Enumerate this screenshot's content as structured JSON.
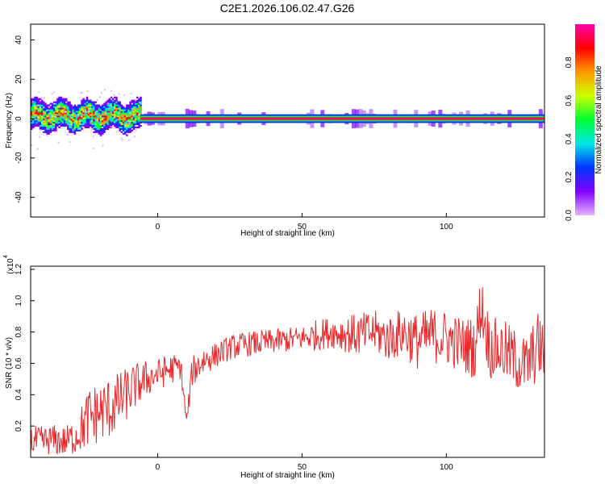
{
  "title": "C2E1.2026.106.02.47.G26",
  "chart_data": [
    {
      "type": "heatmap",
      "title": "C2E1.2026.106.02.47.G26",
      "xlabel": "Height of straight line (km)",
      "ylabel": "Frequency (Hz)",
      "xlim": [
        -44,
        134
      ],
      "ylim": [
        -50,
        48
      ],
      "xticks": [
        0,
        50,
        100
      ],
      "yticks": [
        -40,
        -20,
        0,
        20,
        40
      ],
      "xtick_labels": [
        "0",
        "50",
        "100"
      ],
      "ytick_labels": [
        "-40",
        "-20",
        "0",
        "20",
        "40"
      ],
      "grid": false,
      "colorbar": {
        "label": "Normalized spectral amplitude",
        "range": [
          0,
          1
        ],
        "ticks": [
          0.0,
          0.2,
          0.4,
          0.6,
          0.8
        ],
        "tick_labels": [
          "0.0",
          "0.2",
          "0.4",
          "0.6",
          "0.8"
        ],
        "colormap": [
          "#e6b3ff",
          "#8000ff",
          "#0033ff",
          "#00e6e6",
          "#00ff33",
          "#ccff00",
          "#ff9900",
          "#ff0000",
          "#ff00aa"
        ]
      },
      "regions": [
        {
          "x": [
            -44,
            -6
          ],
          "freq_center": 1,
          "freq_spread": 10,
          "note": "broad noisy band"
        },
        {
          "x": [
            -6,
            134
          ],
          "freq_center": 0,
          "freq_spread": 1,
          "note": "narrow strong line"
        }
      ]
    },
    {
      "type": "line",
      "title": "",
      "xlabel": "Height of straight line (km)",
      "ylabel": "SNR (10 * v/v)",
      "multiplier_label": "(x10",
      "multiplier_exp": "4",
      "xlim": [
        -44,
        134
      ],
      "ylim": [
        0.0,
        1.22
      ],
      "xticks": [
        0,
        50,
        100
      ],
      "yticks": [
        0.2,
        0.4,
        0.6,
        0.8,
        1.0,
        1.2
      ],
      "xtick_labels": [
        "0",
        "50",
        "100"
      ],
      "ytick_labels": [
        "0.2",
        "0.4",
        "0.6",
        "0.8",
        "1.0",
        "1.2"
      ],
      "grid": false,
      "series": [
        {
          "color": "#e8282b",
          "x": [
            -44,
            -40,
            -36,
            -32,
            -28,
            -24,
            -20,
            -16,
            -12,
            -8,
            -4,
            0,
            4,
            8,
            10,
            12,
            16,
            20,
            25,
            30,
            35,
            40,
            45,
            50,
            55,
            60,
            65,
            70,
            75,
            80,
            85,
            90,
            95,
            100,
            105,
            110,
            112,
            115,
            120,
            124,
            128,
            132,
            134
          ],
          "y": [
            0.1,
            0.1,
            0.11,
            0.1,
            0.14,
            0.25,
            0.29,
            0.32,
            0.38,
            0.45,
            0.5,
            0.53,
            0.56,
            0.58,
            0.22,
            0.55,
            0.62,
            0.65,
            0.7,
            0.72,
            0.73,
            0.74,
            0.75,
            0.76,
            0.78,
            0.8,
            0.79,
            0.78,
            0.8,
            0.76,
            0.8,
            0.74,
            0.78,
            0.76,
            0.72,
            0.7,
            0.98,
            0.7,
            0.68,
            0.62,
            0.58,
            0.72,
            0.66
          ],
          "noise": [
            0.1,
            0.1,
            0.1,
            0.1,
            0.12,
            0.2,
            0.2,
            0.2,
            0.18,
            0.15,
            0.12,
            0.1,
            0.1,
            0.08,
            0.05,
            0.1,
            0.1,
            0.08,
            0.08,
            0.08,
            0.08,
            0.08,
            0.08,
            0.08,
            0.1,
            0.1,
            0.12,
            0.14,
            0.14,
            0.15,
            0.16,
            0.18,
            0.18,
            0.18,
            0.18,
            0.2,
            0.2,
            0.2,
            0.2,
            0.2,
            0.2,
            0.22,
            0.2
          ]
        }
      ]
    }
  ]
}
